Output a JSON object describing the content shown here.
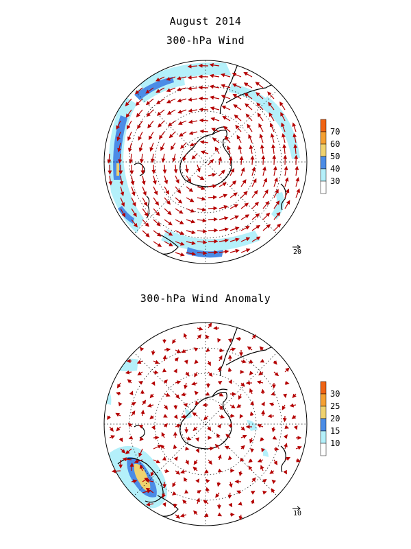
{
  "header": {
    "date_title": "August 2014"
  },
  "panels": [
    {
      "title": "300-hPa Wind",
      "legend": {
        "levels": [
          "30",
          "40",
          "50",
          "60",
          "70"
        ],
        "colors": [
          "#ffffff",
          "#b4f0fa",
          "#4b8ce6",
          "#f0d26e",
          "#f5a032",
          "#f06414"
        ]
      },
      "reference_vector": "20",
      "vector_color": "#b40000"
    },
    {
      "title": "300-hPa Wind Anomaly",
      "legend": {
        "levels": [
          "10",
          "15",
          "20",
          "25",
          "30"
        ],
        "colors": [
          "#ffffff",
          "#b4f0fa",
          "#4b8ce6",
          "#f0d26e",
          "#f5a032",
          "#f06414"
        ]
      },
      "reference_vector": "10",
      "vector_color": "#b40000"
    }
  ]
}
